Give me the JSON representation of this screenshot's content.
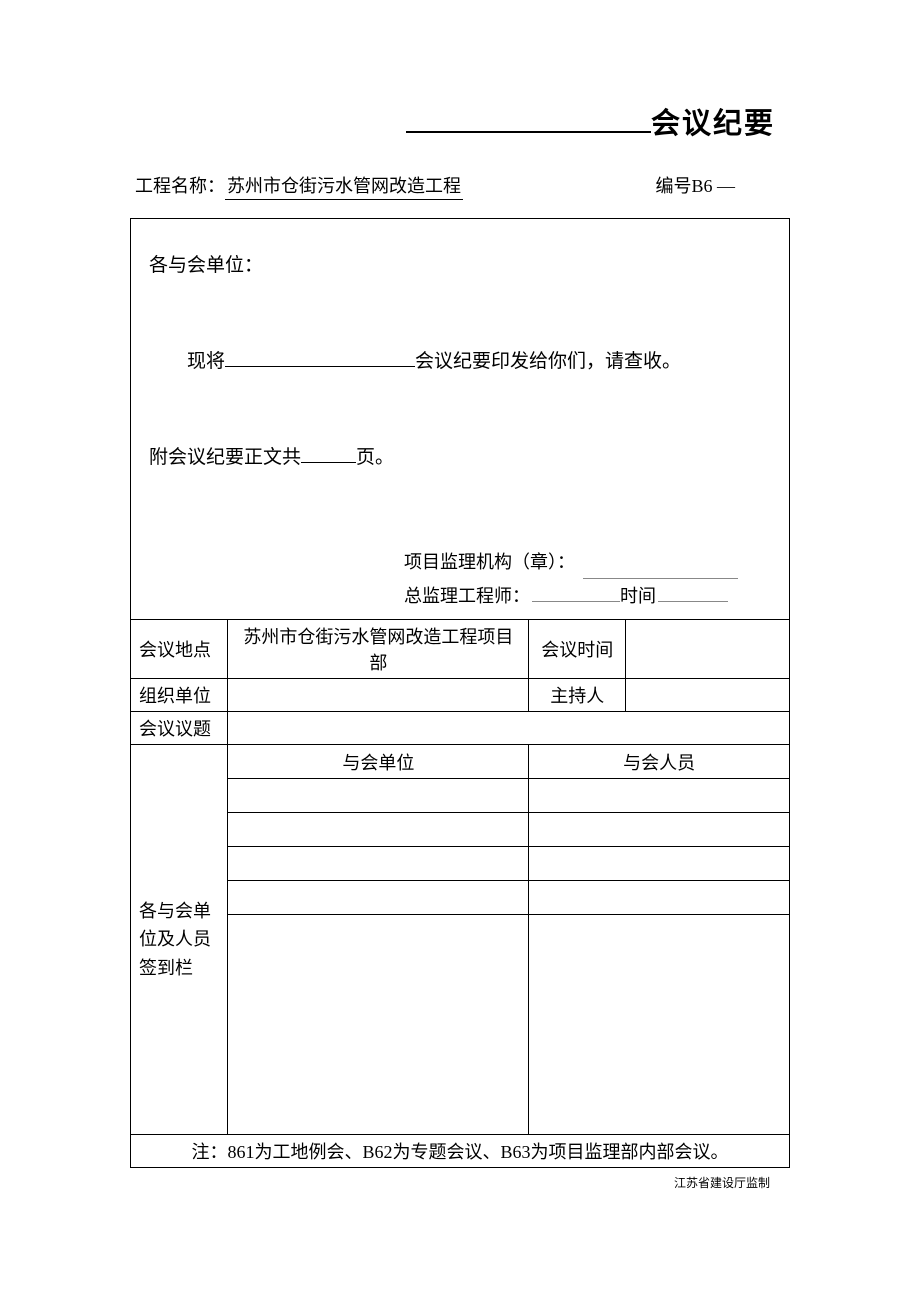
{
  "title": {
    "main": "会议纪要"
  },
  "header": {
    "project_label": "工程名称：",
    "project_name": "苏州市仓街污水管网改造工程",
    "code_label": "编号B6 —"
  },
  "intro": {
    "greeting": "各与会单位：",
    "line1_prefix": "现将",
    "line1_suffix": "会议纪要印发给你们，请查收。",
    "line2_prefix": "附会议纪要正文共",
    "line2_suffix": "页。"
  },
  "signature": {
    "org_label": "项目监理机构（章）：",
    "engineer_label": "总监理工程师：",
    "time_label": "时间"
  },
  "table": {
    "location_label": "会议地点",
    "location_value": "苏州市仓街污水管网改造工程项目部",
    "time_label": "会议时间",
    "time_value": "",
    "org_label": "组织单位",
    "org_value": "",
    "host_label": "主持人",
    "host_value": "",
    "topic_label": "会议议题",
    "topic_value": "",
    "signin_label": "各与会单位及人员签到栏",
    "unit_header": "与会单位",
    "person_header": "与会人员",
    "rows": [
      {
        "unit": "",
        "person": ""
      },
      {
        "unit": "",
        "person": ""
      },
      {
        "unit": "",
        "person": ""
      },
      {
        "unit": "",
        "person": ""
      }
    ],
    "note": "注：861为工地例会、B62为专题会议、B63为项目监理部内部会议。"
  },
  "footer": "江苏省建设厅监制"
}
